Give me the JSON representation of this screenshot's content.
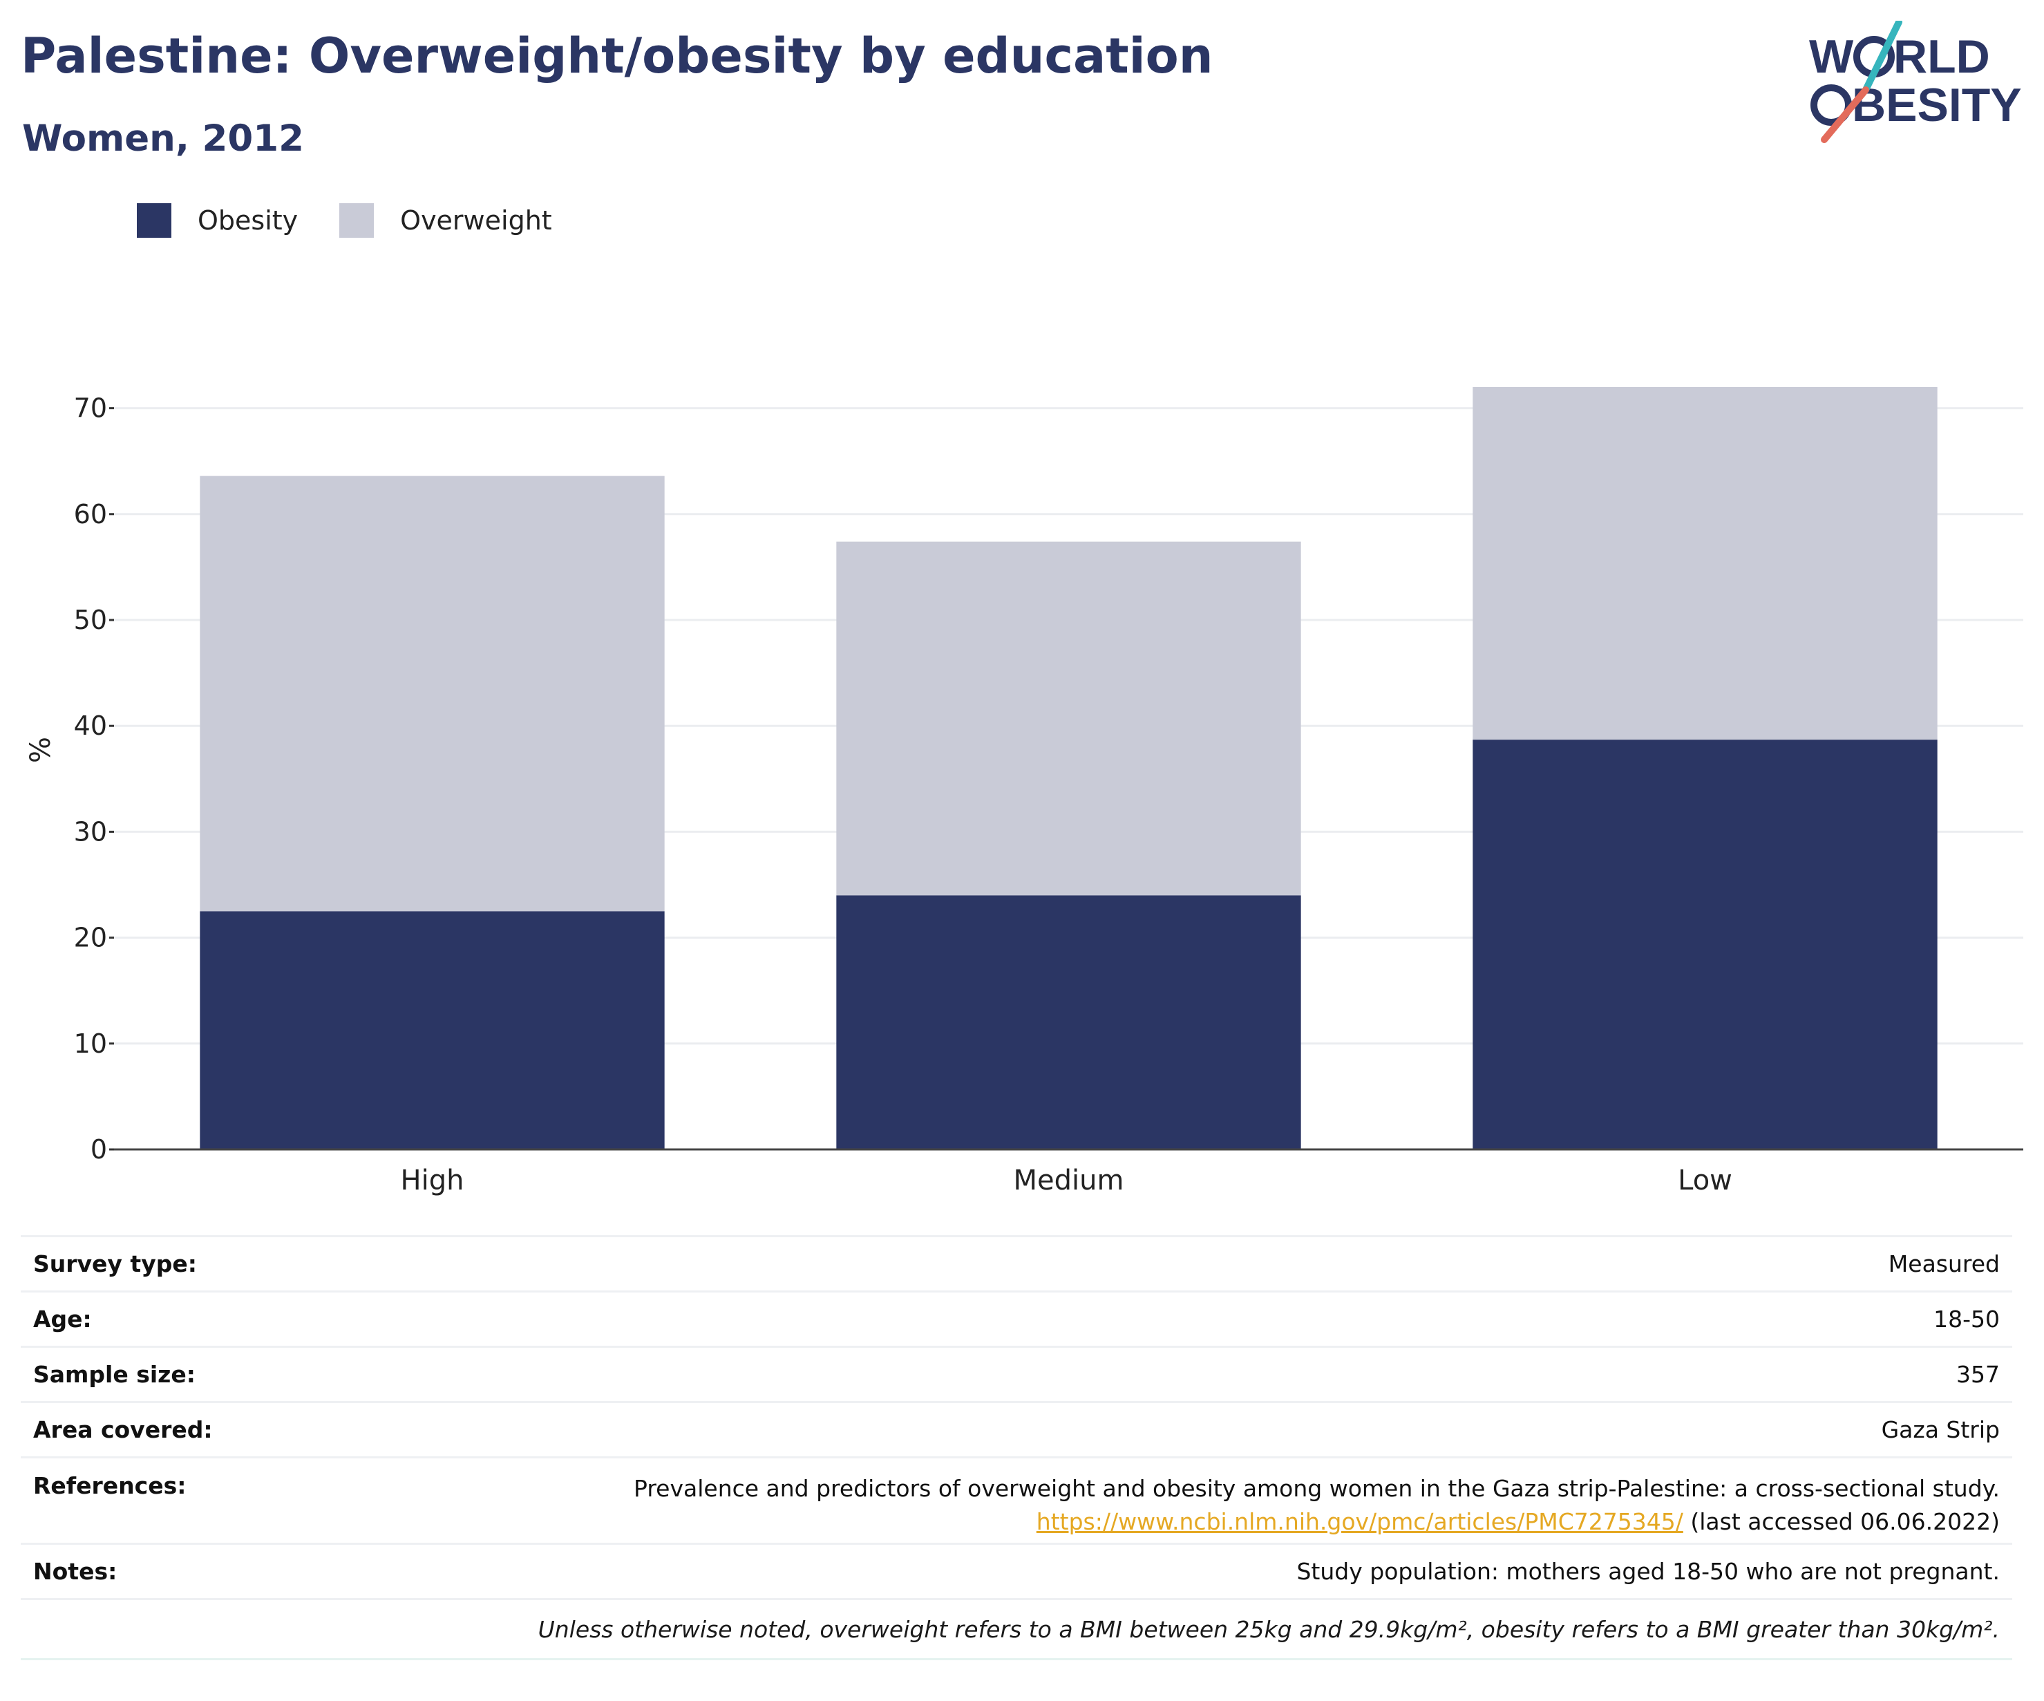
{
  "header": {
    "title": "Palestine: Overweight/obesity by education",
    "subtitle": "Women, 2012"
  },
  "logo": {
    "line1": "WORLD",
    "line2": "OBESITY",
    "accent_colors": [
      "#36b5bd",
      "#e36b5b"
    ]
  },
  "legend": [
    {
      "label": "Obesity",
      "color": "#2b3664"
    },
    {
      "label": "Overweight",
      "color": "#c9cbd7"
    }
  ],
  "chart_data": {
    "type": "bar",
    "stacked": true,
    "categories": [
      "High",
      "Medium",
      "Low"
    ],
    "series": [
      {
        "name": "Obesity",
        "color": "#2b3664",
        "values": [
          22.5,
          24.0,
          38.7
        ]
      },
      {
        "name": "Overweight",
        "color": "#c9cbd7",
        "values": [
          41.1,
          33.4,
          33.3
        ]
      }
    ],
    "title": "Palestine: Overweight/obesity by education",
    "subtitle": "Women, 2012",
    "xlabel": "",
    "ylabel": "%",
    "yticks": [
      0,
      10,
      20,
      30,
      40,
      50,
      60,
      70
    ],
    "ylim": [
      0,
      75
    ],
    "grid": true,
    "legend_position": "top-left"
  },
  "meta": {
    "survey_type": {
      "label": "Survey type:",
      "value": "Measured"
    },
    "age": {
      "label": "Age:",
      "value": "18-50"
    },
    "sample_size": {
      "label": "Sample size:",
      "value": "357"
    },
    "area": {
      "label": "Area covered:",
      "value": "Gaza Strip"
    },
    "references": {
      "label": "References:",
      "line1": "Prevalence and predictors of overweight and obesity among women in the Gaza strip-Palestine: a cross-sectional study.",
      "link": "https://www.ncbi.nlm.nih.gov/pmc/articles/PMC7275345/",
      "accessed": " (last accessed 06.06.2022)"
    },
    "notes": {
      "label": "Notes:",
      "value": "Study population: mothers aged 18-50 who are not pregnant."
    },
    "footnote": "Unless otherwise noted, overweight refers to a BMI between 25kg and 29.9kg/m², obesity refers to a BMI greater than 30kg/m²."
  }
}
